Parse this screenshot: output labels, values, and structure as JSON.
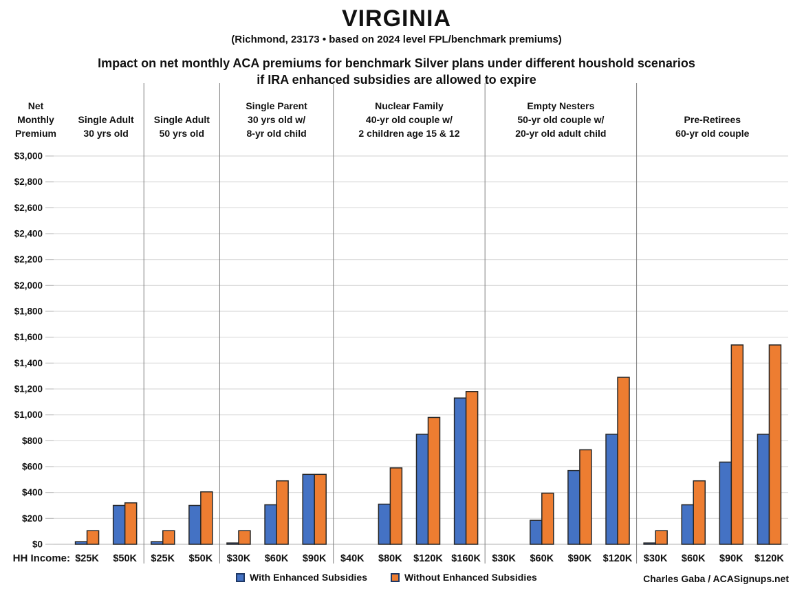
{
  "header": {
    "title": "VIRGINIA",
    "subtitle": "(Richmond, 23173 • based on 2024 level FPL/benchmark premiums)",
    "heading_line1": "Impact on net monthly ACA premiums for benchmark Silver plans under different houshold scenarios",
    "heading_line2": "if IRA enhanced subsidies are allowed to expire"
  },
  "axis": {
    "y_axis_label_lines": [
      "Net",
      "Monthly",
      "Premium"
    ],
    "x_axis_label": "HH Income:"
  },
  "legend": {
    "items": [
      {
        "label": "With Enhanced Subsidies",
        "color": "#4472C4"
      },
      {
        "label": "Without Enhanced Subsidies",
        "color": "#ED7D31"
      }
    ]
  },
  "footer": {
    "credit": "Charles Gaba / ACASignups.net"
  },
  "colors": {
    "with_subsidies": "#4472C4",
    "without_subsidies": "#ED7D31",
    "bar_outline": "#262626",
    "gridline": "#d9d9d9",
    "axis_line": "#bfbfbf",
    "divider": "#7f7f7f"
  },
  "chart_data": {
    "type": "bar",
    "title": "VIRGINIA",
    "subtitle": "(Richmond, 23173 • based on 2024 level FPL/benchmark premiums)",
    "ylabel": "Net Monthly Premium",
    "xlabel": "HH Income:",
    "ylim": [
      0,
      3000
    ],
    "ytick_step": 200,
    "grid": true,
    "legend_position": "bottom",
    "series_names": [
      "With Enhanced Subsidies",
      "Without Enhanced Subsidies"
    ],
    "panels": [
      {
        "label_lines": [
          "Single Adult",
          "30 yrs old"
        ],
        "categories": [
          "$25K",
          "$50K"
        ],
        "series": [
          {
            "name": "With Enhanced Subsidies",
            "values": [
              20,
              300
            ]
          },
          {
            "name": "Without Enhanced Subsidies",
            "values": [
              105,
              320
            ]
          }
        ]
      },
      {
        "label_lines": [
          "Single Adult",
          "50 yrs old"
        ],
        "categories": [
          "$25K",
          "$50K"
        ],
        "series": [
          {
            "name": "With Enhanced Subsidies",
            "values": [
              20,
              300
            ]
          },
          {
            "name": "Without Enhanced Subsidies",
            "values": [
              105,
              405
            ]
          }
        ]
      },
      {
        "label_lines": [
          "Single Parent",
          "30 yrs old w/",
          "8-yr old child"
        ],
        "categories": [
          "$30K",
          "$60K",
          "$90K"
        ],
        "series": [
          {
            "name": "With Enhanced Subsidies",
            "values": [
              10,
              305,
              540
            ]
          },
          {
            "name": "Without Enhanced Subsidies",
            "values": [
              105,
              490,
              540
            ]
          }
        ]
      },
      {
        "label_lines": [
          "Nuclear Family",
          "40-yr old couple w/",
          "2 children age 15 & 12"
        ],
        "categories": [
          "$40K",
          "$80K",
          "$120K",
          "$160K"
        ],
        "series": [
          {
            "name": "With Enhanced Subsidies",
            "values": [
              0,
              310,
              850,
              1130
            ]
          },
          {
            "name": "Without Enhanced Subsidies",
            "values": [
              0,
              590,
              980,
              1180
            ]
          }
        ]
      },
      {
        "label_lines": [
          "Empty Nesters",
          "50-yr old couple w/",
          "20-yr old adult child"
        ],
        "categories": [
          "$30K",
          "$60K",
          "$90K",
          "$120K"
        ],
        "series": [
          {
            "name": "With Enhanced Subsidies",
            "values": [
              0,
              185,
              570,
              850
            ]
          },
          {
            "name": "Without Enhanced Subsidies",
            "values": [
              0,
              395,
              730,
              1290
            ]
          }
        ]
      },
      {
        "label_lines": [
          "Pre-Retirees",
          "60-yr old couple"
        ],
        "categories": [
          "$30K",
          "$60K",
          "$90K",
          "$120K"
        ],
        "series": [
          {
            "name": "With Enhanced Subsidies",
            "values": [
              10,
              305,
              635,
              850
            ]
          },
          {
            "name": "Without Enhanced Subsidies",
            "values": [
              105,
              490,
              1540,
              1540
            ]
          }
        ]
      }
    ]
  }
}
